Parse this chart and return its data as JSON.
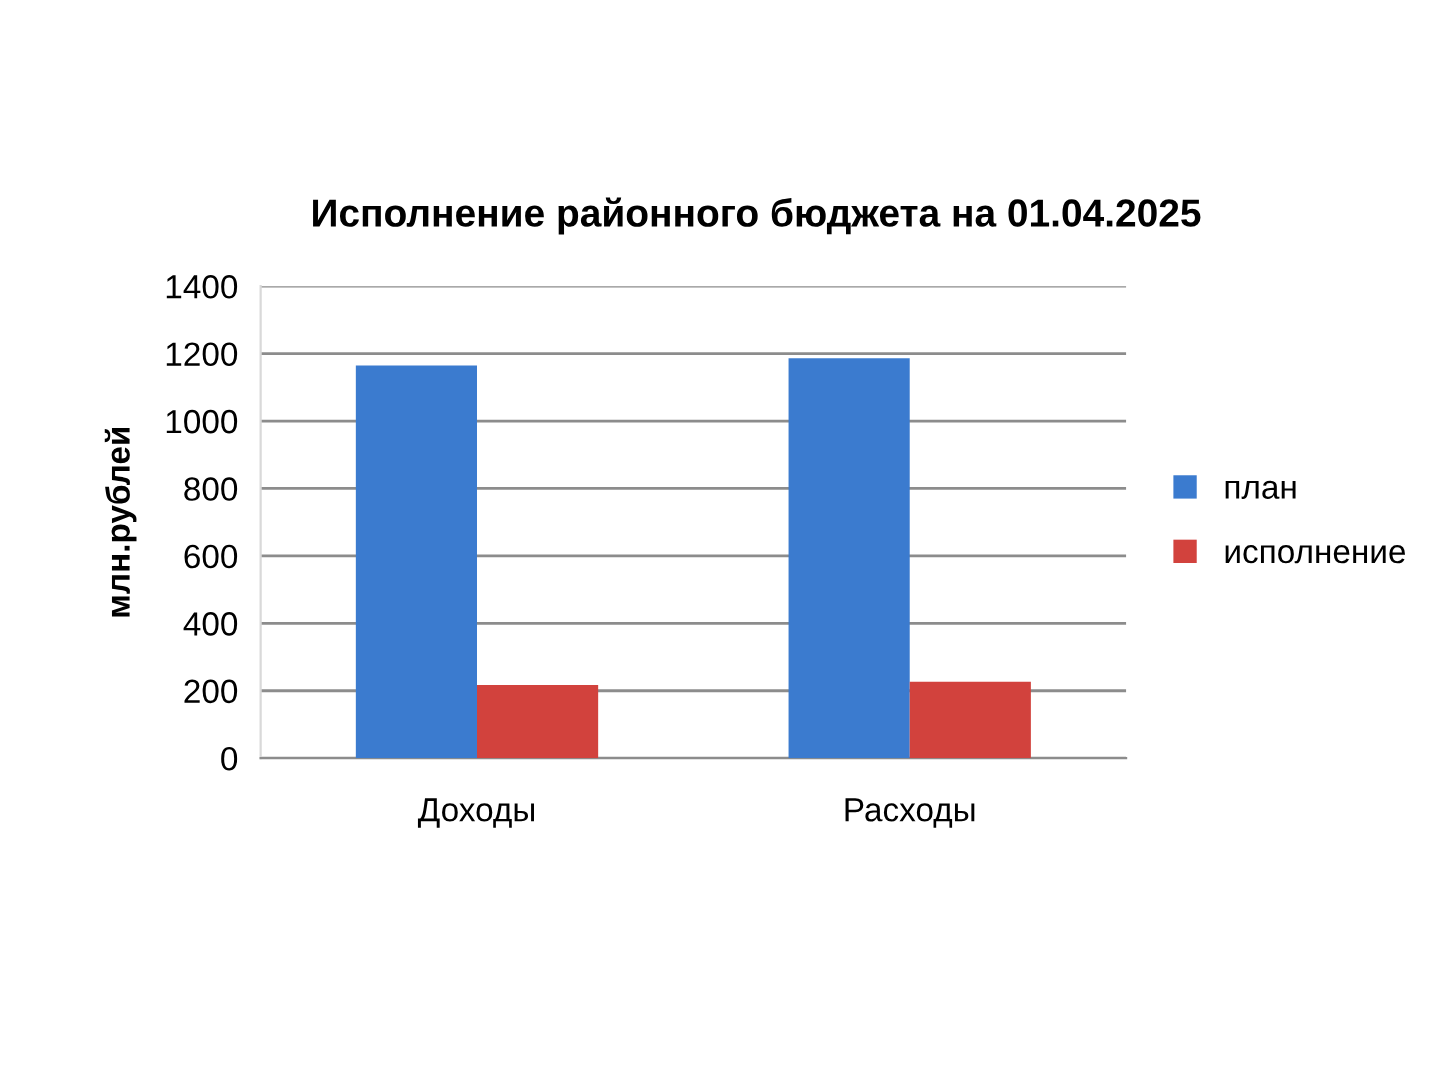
{
  "chart_data": {
    "type": "bar",
    "title": "Исполнение районного бюджета на 01.04.2025",
    "ylabel": "млн.рублей",
    "categories": [
      "Доходы",
      "Расходы"
    ],
    "series": [
      {
        "name": "план",
        "color": "#3b7bcf",
        "values": [
          1165,
          1186
        ]
      },
      {
        "name": "исполнение",
        "color": "#d2423d",
        "values": [
          217,
          227
        ]
      }
    ],
    "ylim": [
      0,
      1400
    ],
    "yticks": [
      0,
      200,
      400,
      600,
      800,
      1000,
      1200,
      1400
    ],
    "grid": "y",
    "legend": "right"
  }
}
